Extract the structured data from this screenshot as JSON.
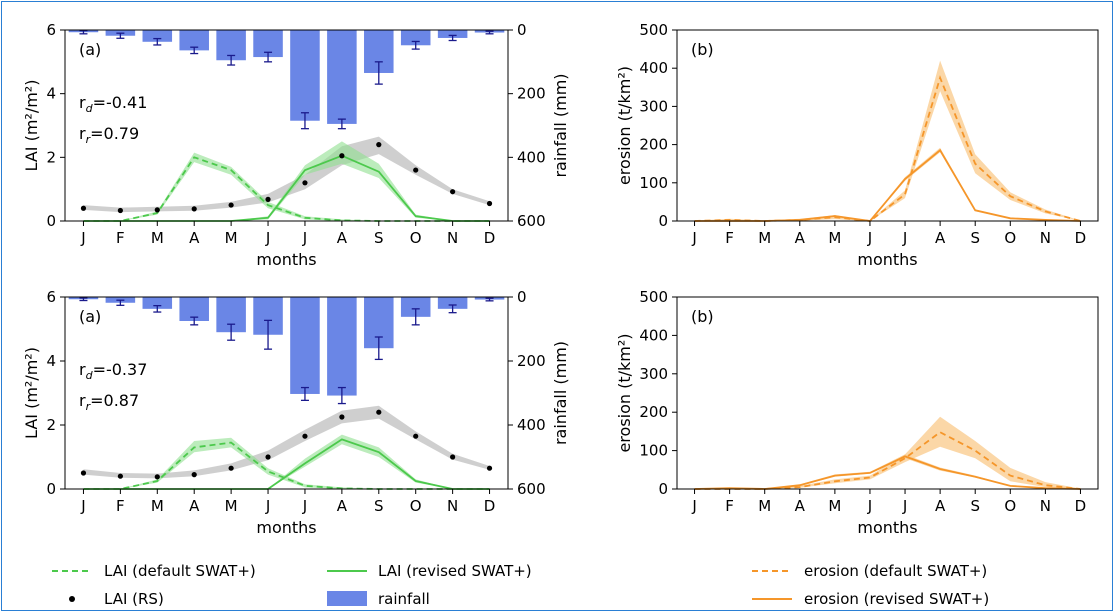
{
  "months": [
    "J",
    "F",
    "M",
    "A",
    "M",
    "J",
    "J",
    "A",
    "S",
    "O",
    "N",
    "D"
  ],
  "colors": {
    "lai_green": "#4cc94c",
    "lai_band": "#8fe08f",
    "rs_band": "#bfbfbf",
    "rainfall": "#6a86e6",
    "rain_err": "#1a1a8c",
    "erosion": "#f5962a",
    "erosion_band": "#f9c98a"
  },
  "legend": {
    "lai_default": "LAI (default SWAT+)",
    "lai_revised": "LAI (revised SWAT+)",
    "lai_rs": "LAI (RS)",
    "rainfall": "rainfall",
    "erosion_default": "erosion (default SWAT+)",
    "erosion_revised": "erosion (revised SWAT+)"
  },
  "chart_data": [
    {
      "type": "line+bar",
      "panel_label": "(a)",
      "xlabel": "months",
      "ylabel_left": "LAI (m²/m²)",
      "ylabel_right": "rainfall (mm)",
      "ylim_left": [
        0,
        6
      ],
      "ylim_right_inverted": [
        0,
        600
      ],
      "yticks_left": [
        "0",
        "2",
        "4",
        "6"
      ],
      "yticks_right": [
        "0",
        "200",
        "400",
        "600"
      ],
      "stats": [
        {
          "prefix": "r",
          "sub": "d",
          "value": "=-0.41"
        },
        {
          "prefix": "r",
          "sub": "r",
          "value": "=0.79"
        }
      ],
      "rainfall": [
        7,
        18,
        37,
        64,
        95,
        85,
        285,
        295,
        135,
        48,
        25,
        8
      ],
      "rainfall_err": [
        5,
        8,
        10,
        10,
        15,
        15,
        25,
        15,
        35,
        12,
        8,
        4
      ],
      "lai_default": [
        0.0,
        0.0,
        0.25,
        2.0,
        1.6,
        0.5,
        0.1,
        0.02,
        0.0,
        0.0,
        0.0,
        0.0
      ],
      "lai_default_band": [
        [
          0.0,
          0.0
        ],
        [
          0.0,
          0.0
        ],
        [
          0.2,
          0.3
        ],
        [
          1.85,
          2.15
        ],
        [
          1.45,
          1.7
        ],
        [
          0.4,
          0.6
        ],
        [
          0.05,
          0.15
        ],
        [
          0.0,
          0.05
        ],
        [
          0,
          0
        ],
        [
          0,
          0
        ],
        [
          0,
          0
        ],
        [
          0,
          0
        ]
      ],
      "lai_revised": [
        0.0,
        0.0,
        0.0,
        0.0,
        0.0,
        0.1,
        1.6,
        2.05,
        1.55,
        0.15,
        0.0,
        0.0
      ],
      "lai_revised_band": [
        [
          0,
          0
        ],
        [
          0,
          0
        ],
        [
          0,
          0
        ],
        [
          0,
          0
        ],
        [
          0,
          0
        ],
        [
          0.05,
          0.15
        ],
        [
          1.45,
          1.75
        ],
        [
          1.8,
          2.5
        ],
        [
          1.35,
          1.8
        ],
        [
          0.1,
          0.2
        ],
        [
          0,
          0
        ],
        [
          0,
          0
        ]
      ],
      "lai_rs": [
        0.4,
        0.33,
        0.35,
        0.38,
        0.5,
        0.68,
        1.2,
        2.05,
        2.4,
        1.6,
        0.92,
        0.55
      ],
      "lai_rs_band": [
        [
          0.35,
          0.5
        ],
        [
          0.28,
          0.42
        ],
        [
          0.3,
          0.45
        ],
        [
          0.32,
          0.48
        ],
        [
          0.42,
          0.6
        ],
        [
          0.58,
          0.85
        ],
        [
          1.0,
          1.45
        ],
        [
          1.75,
          2.35
        ],
        [
          2.1,
          2.65
        ],
        [
          1.45,
          1.75
        ],
        [
          0.85,
          1.0
        ],
        [
          0.5,
          0.62
        ]
      ]
    },
    {
      "type": "line",
      "panel_label": "(b)",
      "xlabel": "months",
      "ylabel": "erosion (t/km²)",
      "ylim": [
        0,
        500
      ],
      "yticks": [
        "0",
        "100",
        "200",
        "300",
        "400",
        "500"
      ],
      "erosion_default": [
        0,
        3,
        0,
        3,
        10,
        0,
        70,
        375,
        150,
        65,
        25,
        0
      ],
      "erosion_default_band": [
        [
          0,
          1
        ],
        [
          1,
          6
        ],
        [
          0,
          1
        ],
        [
          1,
          6
        ],
        [
          5,
          15
        ],
        [
          0,
          1
        ],
        [
          60,
          80
        ],
        [
          340,
          420
        ],
        [
          125,
          175
        ],
        [
          55,
          75
        ],
        [
          20,
          30
        ],
        [
          0,
          1
        ]
      ],
      "erosion_revised": [
        0,
        0,
        0,
        3,
        13,
        0,
        110,
        185,
        28,
        7,
        3,
        0
      ],
      "erosion_revised_band": [
        [
          0,
          0
        ],
        [
          0,
          0
        ],
        [
          0,
          0
        ],
        [
          2,
          4
        ],
        [
          11,
          15
        ],
        [
          0,
          0
        ],
        [
          105,
          115
        ],
        [
          180,
          192
        ],
        [
          26,
          30
        ],
        [
          6,
          8
        ],
        [
          2,
          4
        ],
        [
          0,
          0
        ]
      ]
    },
    {
      "type": "line+bar",
      "panel_label": "(a)",
      "xlabel": "months",
      "ylabel_left": "LAI (m²/m²)",
      "ylabel_right": "rainfall (mm)",
      "ylim_left": [
        0,
        6
      ],
      "ylim_right_inverted": [
        0,
        600
      ],
      "yticks_left": [
        "0",
        "2",
        "4",
        "6"
      ],
      "yticks_right": [
        "0",
        "200",
        "400",
        "600"
      ],
      "stats": [
        {
          "prefix": "r",
          "sub": "d",
          "value": "=-0.37"
        },
        {
          "prefix": "r",
          "sub": "r",
          "value": "=0.87"
        }
      ],
      "rainfall": [
        7,
        18,
        37,
        75,
        110,
        118,
        303,
        308,
        160,
        62,
        37,
        8
      ],
      "rainfall_err": [
        4,
        8,
        10,
        12,
        25,
        45,
        20,
        25,
        35,
        25,
        12,
        4
      ],
      "lai_default": [
        0.0,
        0.0,
        0.25,
        1.3,
        1.45,
        0.55,
        0.1,
        0.02,
        0.0,
        0.0,
        0.0,
        0.0
      ],
      "lai_default_band": [
        [
          0,
          0
        ],
        [
          0,
          0
        ],
        [
          0.2,
          0.3
        ],
        [
          1.15,
          1.5
        ],
        [
          1.3,
          1.6
        ],
        [
          0.45,
          0.65
        ],
        [
          0.05,
          0.15
        ],
        [
          0,
          0.05
        ],
        [
          0,
          0
        ],
        [
          0,
          0
        ],
        [
          0,
          0
        ],
        [
          0,
          0
        ]
      ],
      "lai_revised": [
        0.0,
        0.0,
        0.0,
        0.0,
        0.0,
        0.0,
        0.8,
        1.55,
        1.15,
        0.25,
        0.0,
        0.0
      ],
      "lai_revised_band": [
        [
          0,
          0
        ],
        [
          0,
          0
        ],
        [
          0,
          0
        ],
        [
          0,
          0
        ],
        [
          0,
          0
        ],
        [
          0,
          0
        ],
        [
          0.7,
          0.95
        ],
        [
          1.4,
          1.7
        ],
        [
          1.0,
          1.3
        ],
        [
          0.2,
          0.3
        ],
        [
          0,
          0
        ],
        [
          0,
          0
        ]
      ],
      "lai_rs": [
        0.5,
        0.4,
        0.38,
        0.45,
        0.65,
        1.0,
        1.65,
        2.25,
        2.4,
        1.65,
        1.0,
        0.65
      ],
      "lai_rs_band": [
        [
          0.45,
          0.62
        ],
        [
          0.35,
          0.5
        ],
        [
          0.33,
          0.48
        ],
        [
          0.4,
          0.58
        ],
        [
          0.58,
          0.8
        ],
        [
          0.9,
          1.2
        ],
        [
          1.5,
          1.85
        ],
        [
          2.05,
          2.45
        ],
        [
          2.2,
          2.6
        ],
        [
          1.55,
          1.8
        ],
        [
          0.92,
          1.1
        ],
        [
          0.6,
          0.72
        ]
      ]
    },
    {
      "type": "line",
      "panel_label": "(b)",
      "xlabel": "months",
      "ylabel": "erosion (t/km²)",
      "ylim": [
        0,
        500
      ],
      "yticks": [
        "0",
        "100",
        "200",
        "300",
        "400",
        "500"
      ],
      "erosion_default": [
        0,
        0,
        0,
        5,
        20,
        30,
        80,
        148,
        100,
        35,
        10,
        0
      ],
      "erosion_default_band": [
        [
          0,
          1
        ],
        [
          0,
          1
        ],
        [
          0,
          1
        ],
        [
          3,
          8
        ],
        [
          15,
          25
        ],
        [
          25,
          35
        ],
        [
          70,
          90
        ],
        [
          110,
          188
        ],
        [
          80,
          125
        ],
        [
          20,
          55
        ],
        [
          5,
          18
        ],
        [
          0,
          1
        ]
      ],
      "erosion_revised": [
        0,
        2,
        0,
        10,
        35,
        42,
        85,
        52,
        32,
        8,
        2,
        0
      ],
      "erosion_revised_band": [
        [
          0,
          0
        ],
        [
          1,
          3
        ],
        [
          0,
          0
        ],
        [
          8,
          12
        ],
        [
          32,
          38
        ],
        [
          40,
          45
        ],
        [
          80,
          90
        ],
        [
          48,
          56
        ],
        [
          30,
          35
        ],
        [
          7,
          9
        ],
        [
          1,
          3
        ],
        [
          0,
          0
        ]
      ]
    }
  ]
}
